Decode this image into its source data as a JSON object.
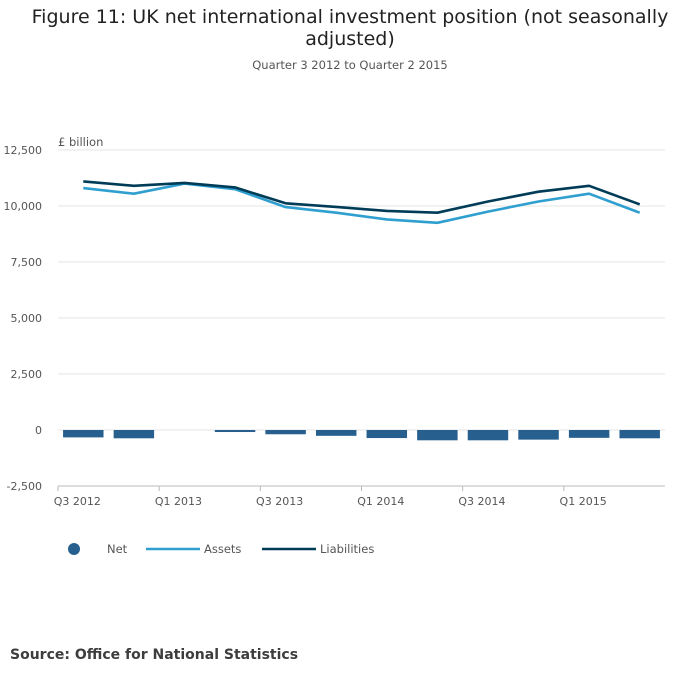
{
  "title": "Figure 11: UK net international investment position (not seasonally adjusted)",
  "subtitle": "Quarter 3 2012 to Quarter 2 2015",
  "source": "Source: Office for National Statistics",
  "colors": {
    "net": "#27608f",
    "assets": "#2f9fd0",
    "liabilities": "#003c57",
    "grid": "#e4e4e4"
  },
  "chart_data": {
    "type": "bar+line",
    "ylabel": "£ billion",
    "ylim": [
      -2500,
      12500
    ],
    "yticks": [
      -2500,
      0,
      2500,
      5000,
      7500,
      10000,
      12500
    ],
    "ytick_labels": [
      "-2,500",
      "0",
      "2,500",
      "5,000",
      "7,500",
      "10,000",
      "12,500"
    ],
    "categories": [
      "Q3 2012",
      "Q4 2012",
      "Q1 2013",
      "Q2 2013",
      "Q3 2013",
      "Q4 2013",
      "Q1 2014",
      "Q2 2014",
      "Q3 2014",
      "Q4 2014",
      "Q1 2015",
      "Q2 2015"
    ],
    "xtick_labels": [
      "Q3 2012",
      "Q1 2013",
      "Q3 2013",
      "Q1 2014",
      "Q3 2014",
      "Q1 2015"
    ],
    "xtick_indices": [
      0,
      2,
      4,
      6,
      8,
      10
    ],
    "legend": [
      "Net",
      "Assets",
      "Liabilities"
    ],
    "series": [
      {
        "name": "Net",
        "kind": "bar",
        "values": [
          -330,
          -370,
          0,
          -90,
          -190,
          -260,
          -360,
          -460,
          -460,
          -430,
          -350,
          -370
        ]
      },
      {
        "name": "Assets",
        "kind": "line",
        "values": [
          10800,
          10550,
          11000,
          10750,
          9950,
          9700,
          9400,
          9250,
          9750,
          10200,
          10550,
          9700
        ]
      },
      {
        "name": "Liabilities",
        "kind": "line",
        "values": [
          11100,
          10900,
          11030,
          10830,
          10120,
          9960,
          9780,
          9700,
          10200,
          10640,
          10900,
          10070
        ]
      }
    ]
  }
}
